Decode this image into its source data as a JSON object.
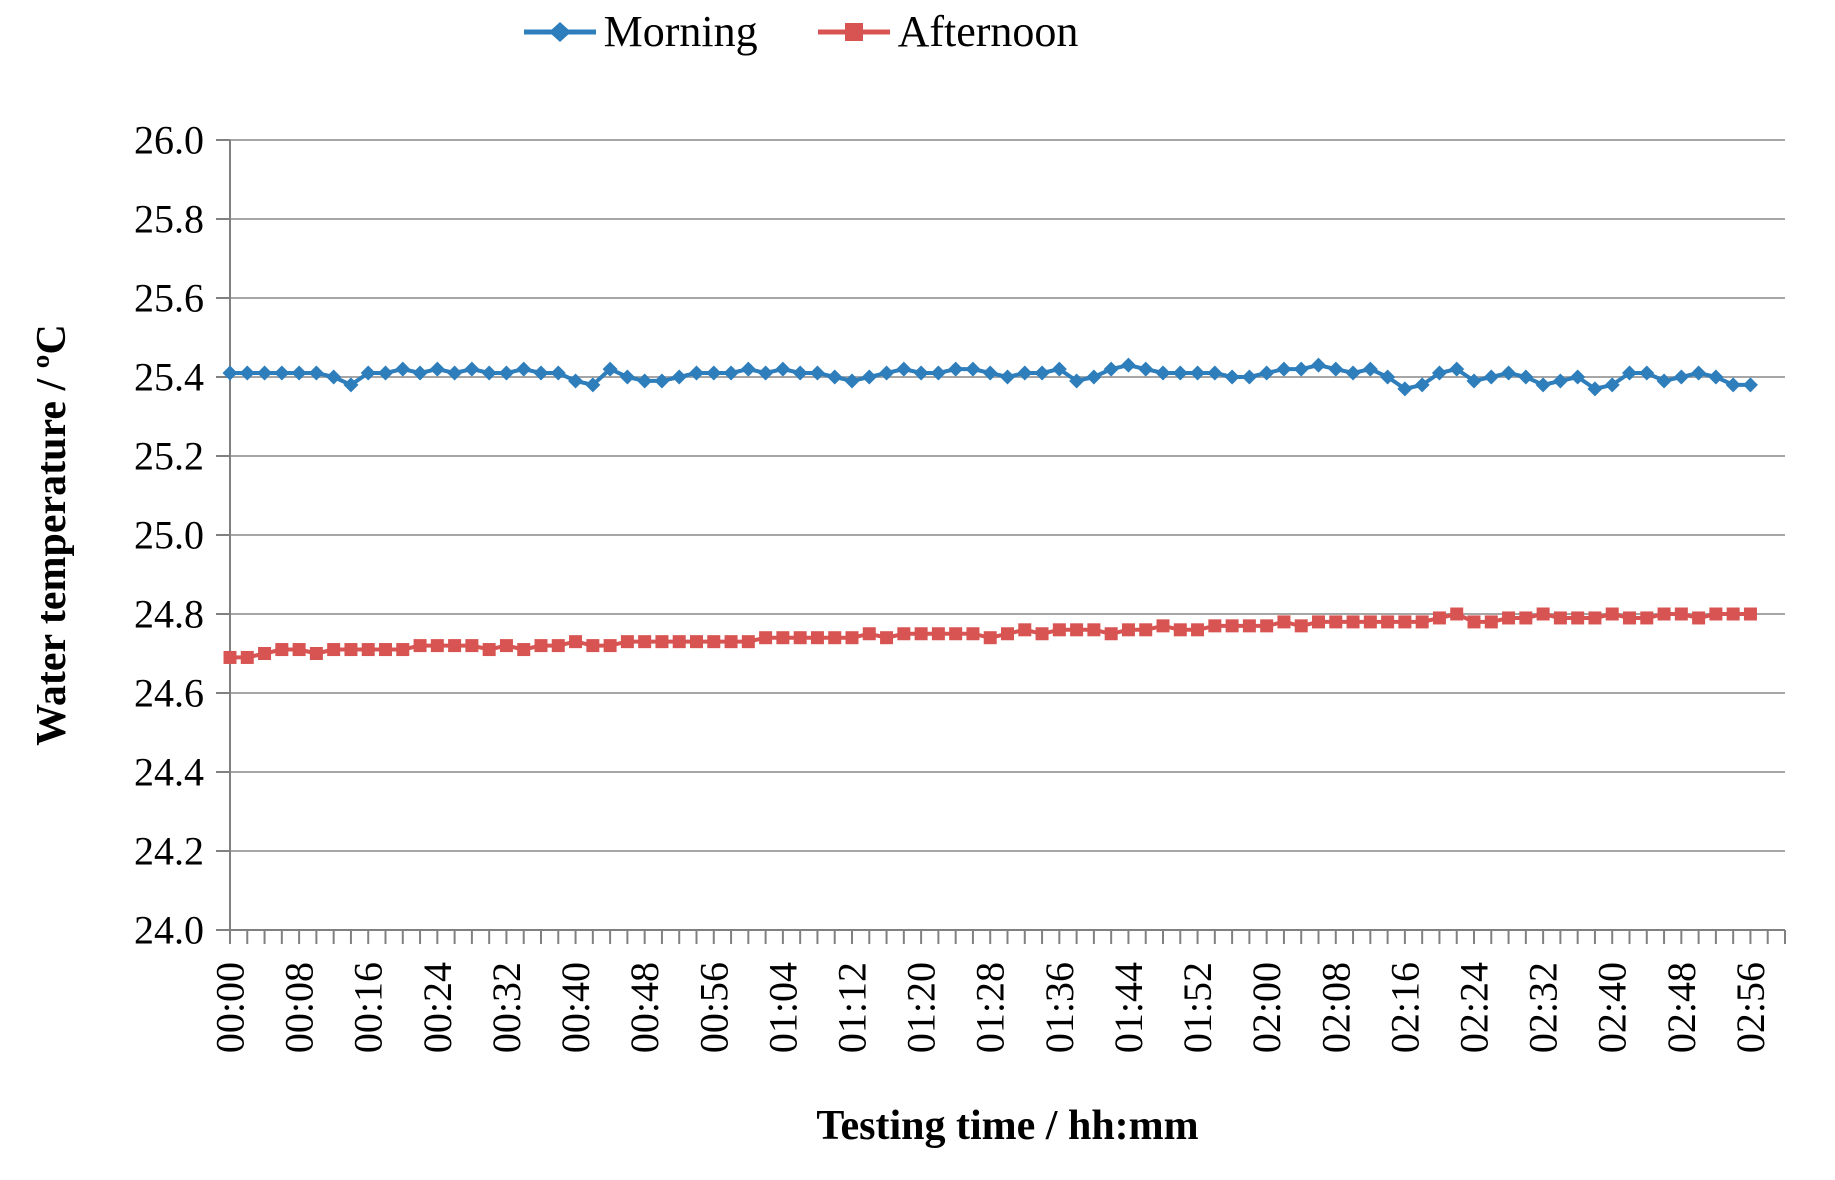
{
  "legend": {
    "items": [
      {
        "label": "Morning",
        "marker": "diamond",
        "color": "#2E7EBC"
      },
      {
        "label": "Afternoon",
        "marker": "square",
        "color": "#D85452"
      }
    ]
  },
  "axes": {
    "y_ticks": [
      "24.0",
      "24.2",
      "24.4",
      "24.6",
      "24.8",
      "25.0",
      "25.2",
      "25.4",
      "25.6",
      "25.8",
      "26.0"
    ],
    "x_tick_labels": [
      "00:00",
      "00:08",
      "00:16",
      "00:24",
      "00:32",
      "00:40",
      "00:48",
      "00:56",
      "01:04",
      "01:12",
      "01:20",
      "01:28",
      "01:36",
      "01:44",
      "01:52",
      "02:00",
      "02:08",
      "02:16",
      "02:24",
      "02:32",
      "02:40",
      "02:48",
      "02:56"
    ]
  },
  "colors": {
    "grid": "#A6A6A6",
    "axis": "#808080",
    "text": "#000000",
    "background": "#FFFFFF",
    "morning": "#2E7EBC",
    "afternoon": "#D85452"
  },
  "chart_data": {
    "type": "line",
    "xlabel": "Testing time / hh:mm",
    "ylabel": "Water temperature / ºC",
    "ylim": [
      24.0,
      26.0
    ],
    "y_tick_step": 0.2,
    "x_tick_step_min": 2,
    "x_label_every_min": 8,
    "x_axis_end": "03:00",
    "grid": "horizontal-only",
    "legend_position": "top-center",
    "categories": [
      "00:00",
      "00:02",
      "00:04",
      "00:06",
      "00:08",
      "00:10",
      "00:12",
      "00:14",
      "00:16",
      "00:18",
      "00:20",
      "00:22",
      "00:24",
      "00:26",
      "00:28",
      "00:30",
      "00:32",
      "00:34",
      "00:36",
      "00:38",
      "00:40",
      "00:42",
      "00:44",
      "00:46",
      "00:48",
      "00:50",
      "00:52",
      "00:54",
      "00:56",
      "00:58",
      "01:00",
      "01:02",
      "01:04",
      "01:06",
      "01:08",
      "01:10",
      "01:12",
      "01:14",
      "01:16",
      "01:18",
      "01:20",
      "01:22",
      "01:24",
      "01:26",
      "01:28",
      "01:30",
      "01:32",
      "01:34",
      "01:36",
      "01:38",
      "01:40",
      "01:42",
      "01:44",
      "01:46",
      "01:48",
      "01:50",
      "01:52",
      "01:54",
      "01:56",
      "01:58",
      "02:00",
      "02:02",
      "02:04",
      "02:06",
      "02:08",
      "02:10",
      "02:12",
      "02:14",
      "02:16",
      "02:18",
      "02:20",
      "02:22",
      "02:24",
      "02:26",
      "02:28",
      "02:30",
      "02:32",
      "02:34",
      "02:36",
      "02:38",
      "02:40",
      "02:42",
      "02:44",
      "02:46",
      "02:48",
      "02:50",
      "02:52",
      "02:54",
      "02:56"
    ],
    "series": [
      {
        "name": "Morning",
        "color": "#2E7EBC",
        "marker": "diamond",
        "values": [
          25.41,
          25.41,
          25.41,
          25.41,
          25.41,
          25.41,
          25.4,
          25.38,
          25.41,
          25.41,
          25.42,
          25.41,
          25.42,
          25.41,
          25.42,
          25.41,
          25.41,
          25.42,
          25.41,
          25.41,
          25.39,
          25.38,
          25.42,
          25.4,
          25.39,
          25.39,
          25.4,
          25.41,
          25.41,
          25.41,
          25.42,
          25.41,
          25.42,
          25.41,
          25.41,
          25.4,
          25.39,
          25.4,
          25.41,
          25.42,
          25.41,
          25.41,
          25.42,
          25.42,
          25.41,
          25.4,
          25.41,
          25.41,
          25.42,
          25.39,
          25.4,
          25.42,
          25.43,
          25.42,
          25.41,
          25.41,
          25.41,
          25.41,
          25.4,
          25.4,
          25.41,
          25.42,
          25.42,
          25.43,
          25.42,
          25.41,
          25.42,
          25.4,
          25.37,
          25.38,
          25.41,
          25.42,
          25.39,
          25.4,
          25.41,
          25.4,
          25.38,
          25.39,
          25.4,
          25.37,
          25.38,
          25.41,
          25.41,
          25.39,
          25.4,
          25.41,
          25.4,
          25.38,
          25.38
        ]
      },
      {
        "name": "Afternoon",
        "color": "#D85452",
        "marker": "square",
        "values": [
          24.69,
          24.69,
          24.7,
          24.71,
          24.71,
          24.7,
          24.71,
          24.71,
          24.71,
          24.71,
          24.71,
          24.72,
          24.72,
          24.72,
          24.72,
          24.71,
          24.72,
          24.71,
          24.72,
          24.72,
          24.73,
          24.72,
          24.72,
          24.73,
          24.73,
          24.73,
          24.73,
          24.73,
          24.73,
          24.73,
          24.73,
          24.74,
          24.74,
          24.74,
          24.74,
          24.74,
          24.74,
          24.75,
          24.74,
          24.75,
          24.75,
          24.75,
          24.75,
          24.75,
          24.74,
          24.75,
          24.76,
          24.75,
          24.76,
          24.76,
          24.76,
          24.75,
          24.76,
          24.76,
          24.77,
          24.76,
          24.76,
          24.77,
          24.77,
          24.77,
          24.77,
          24.78,
          24.77,
          24.78,
          24.78,
          24.78,
          24.78,
          24.78,
          24.78,
          24.78,
          24.79,
          24.8,
          24.78,
          24.78,
          24.79,
          24.79,
          24.8,
          24.79,
          24.79,
          24.79,
          24.8,
          24.79,
          24.79,
          24.8,
          24.8,
          24.79,
          24.8,
          24.8,
          24.8
        ]
      }
    ]
  }
}
